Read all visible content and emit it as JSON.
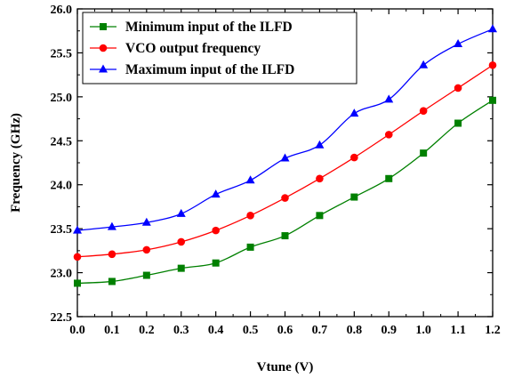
{
  "chart_data": {
    "type": "line",
    "title": "",
    "xlabel": "Vtune (V)",
    "ylabel": "Frequency (GHz)",
    "xlim": [
      0.0,
      1.2
    ],
    "ylim": [
      22.5,
      26.0
    ],
    "xticks": [
      "0.0",
      "0.1",
      "0.2",
      "0.3",
      "0.4",
      "0.5",
      "0.6",
      "0.7",
      "0.8",
      "0.9",
      "1.0",
      "1.1",
      "1.2"
    ],
    "yticks": [
      "22.5",
      "23.0",
      "23.5",
      "24.0",
      "24.5",
      "25.0",
      "25.5",
      "26.0"
    ],
    "grid": false,
    "legend": "top-left",
    "x": [
      0.0,
      0.1,
      0.2,
      0.3,
      0.4,
      0.5,
      0.6,
      0.7,
      0.8,
      0.9,
      1.0,
      1.1,
      1.2
    ],
    "series": [
      {
        "name": "Minimum input of the ILFD",
        "marker": "square",
        "color": "#008000",
        "values": [
          22.88,
          22.9,
          22.97,
          23.05,
          23.11,
          23.29,
          23.42,
          23.65,
          23.86,
          24.07,
          24.36,
          24.7,
          24.96
        ]
      },
      {
        "name": "VCO output frequency",
        "marker": "circle",
        "color": "#ff0000",
        "values": [
          23.18,
          23.21,
          23.26,
          23.35,
          23.48,
          23.65,
          23.85,
          24.07,
          24.31,
          24.57,
          24.84,
          25.1,
          25.36
        ]
      },
      {
        "name": "Maximum input of the ILFD",
        "marker": "triangle",
        "color": "#0000ff",
        "values": [
          23.48,
          23.52,
          23.57,
          23.67,
          23.89,
          24.05,
          24.3,
          24.45,
          24.81,
          24.97,
          25.36,
          25.6,
          25.77
        ]
      }
    ]
  }
}
